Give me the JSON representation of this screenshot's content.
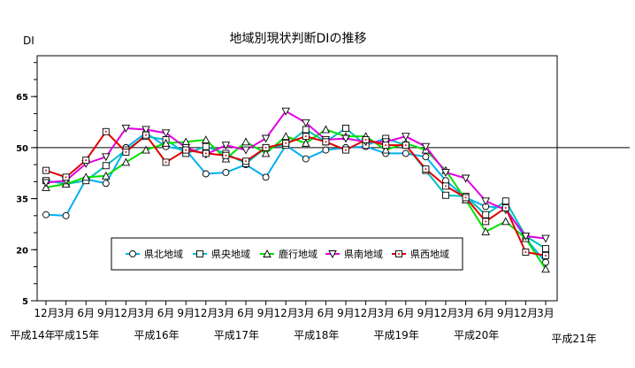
{
  "chart_data": {
    "type": "line",
    "title": "地域別現状判断DIの推移",
    "ylabel": "DI",
    "ylim": [
      5,
      77
    ],
    "yticks": [
      5,
      20,
      35,
      50,
      65
    ],
    "reference_line": 50,
    "x": [
      "12月",
      "3月",
      "6月",
      "9月",
      "12月",
      "3月",
      "6月",
      "9月",
      "12月",
      "3月",
      "6月",
      "9月",
      "12月",
      "3月",
      "6月",
      "9月",
      "12月",
      "3月",
      "6月",
      "9月",
      "12月",
      "3月",
      "6月",
      "9月",
      "12月",
      "3月"
    ],
    "x_tick_labels": [
      "12月",
      "3月",
      "6月",
      "9月",
      "12月",
      "3月",
      "6月",
      "9月",
      "12月",
      "3月",
      "6月",
      "9月",
      "12月",
      "3月",
      "6月",
      "9月",
      "12月",
      "3月",
      "6月",
      "9月",
      "12月",
      "3月",
      "6月",
      "9月",
      "12月",
      "3月"
    ],
    "year_labels": [
      "平成14年",
      "平成15年",
      "平成16年",
      "平成17年",
      "平成18年",
      "平成19年",
      "平成20年",
      "平成21年"
    ],
    "legend_position": "bottom-center-inside",
    "series": [
      {
        "name": "県北地域",
        "marker": "circle",
        "color": "#00b0f0",
        "values": [
          30.3,
          30.0,
          40.7,
          39.5,
          50.0,
          54.3,
          50.3,
          49.3,
          42.3,
          42.7,
          45.0,
          41.3,
          50.7,
          46.7,
          49.3,
          50.0,
          50.3,
          48.3,
          48.3,
          47.3,
          40.3,
          35.3,
          32.7,
          32.3,
          23.3,
          16.3
        ]
      },
      {
        "name": "県央地域",
        "marker": "square",
        "color": "#00c0c0",
        "values": [
          40.3,
          39.3,
          40.3,
          44.7,
          49.3,
          53.3,
          52.3,
          48.3,
          50.3,
          48.3,
          45.3,
          50.0,
          50.7,
          55.3,
          51.7,
          55.7,
          50.7,
          52.7,
          50.7,
          43.3,
          36.0,
          35.7,
          30.3,
          34.3,
          24.0,
          20.3
        ]
      },
      {
        "name": "鹿行地域",
        "marker": "triangle-up",
        "color": "#00e000",
        "values": [
          38.3,
          39.3,
          41.3,
          41.7,
          45.7,
          49.3,
          51.3,
          51.7,
          52.3,
          46.7,
          51.7,
          48.3,
          53.3,
          51.3,
          55.3,
          53.3,
          53.3,
          49.3,
          51.3,
          49.3,
          43.3,
          34.7,
          25.3,
          28.3,
          23.3,
          14.3
        ]
      },
      {
        "name": "県南地域",
        "marker": "triangle-down",
        "color": "#e000e0",
        "values": [
          39.7,
          40.3,
          45.3,
          47.3,
          55.7,
          55.3,
          54.3,
          50.0,
          48.0,
          50.7,
          49.3,
          52.7,
          60.7,
          57.3,
          52.3,
          52.7,
          51.7,
          51.7,
          53.3,
          50.3,
          42.7,
          41.0,
          34.3,
          31.7,
          24.0,
          23.3
        ]
      },
      {
        "name": "県西地域",
        "marker": "square-dot",
        "color": "#e00000",
        "values": [
          43.3,
          41.3,
          46.3,
          54.7,
          48.7,
          53.7,
          45.7,
          49.3,
          48.3,
          47.7,
          46.0,
          50.0,
          51.3,
          53.3,
          51.7,
          49.3,
          52.3,
          50.7,
          50.7,
          43.7,
          38.7,
          35.3,
          28.3,
          32.3,
          19.3,
          18.3
        ]
      }
    ]
  }
}
